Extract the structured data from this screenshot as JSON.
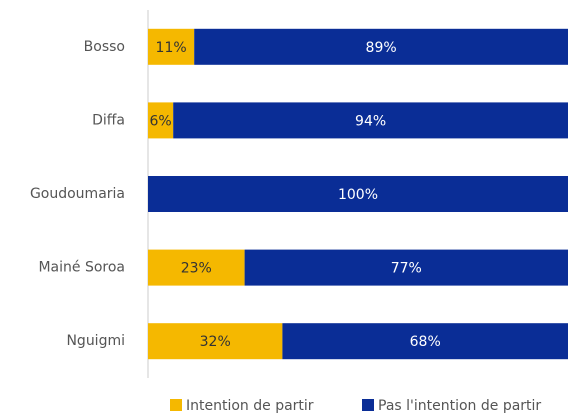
{
  "chart_data": {
    "type": "stacked-bar-horizontal",
    "categories": [
      "Bosso",
      "Diffa",
      "Goudoumaria",
      "Mainé Soroa",
      "Nguigmi"
    ],
    "xlim": [
      0,
      100
    ],
    "series": [
      {
        "name": "Intention de partir",
        "color": "#f5b800",
        "values": [
          11,
          6,
          0,
          23,
          32
        ],
        "value_labels": [
          "11%",
          "6%",
          null,
          "23%",
          "32%"
        ]
      },
      {
        "name": "Pas l'intention de partir",
        "color": "#0a2d96",
        "values": [
          89,
          94,
          100,
          77,
          68
        ],
        "value_labels": [
          "89%",
          "94%",
          "100%",
          "77%",
          "68%"
        ]
      }
    ],
    "legend": "bottom"
  }
}
